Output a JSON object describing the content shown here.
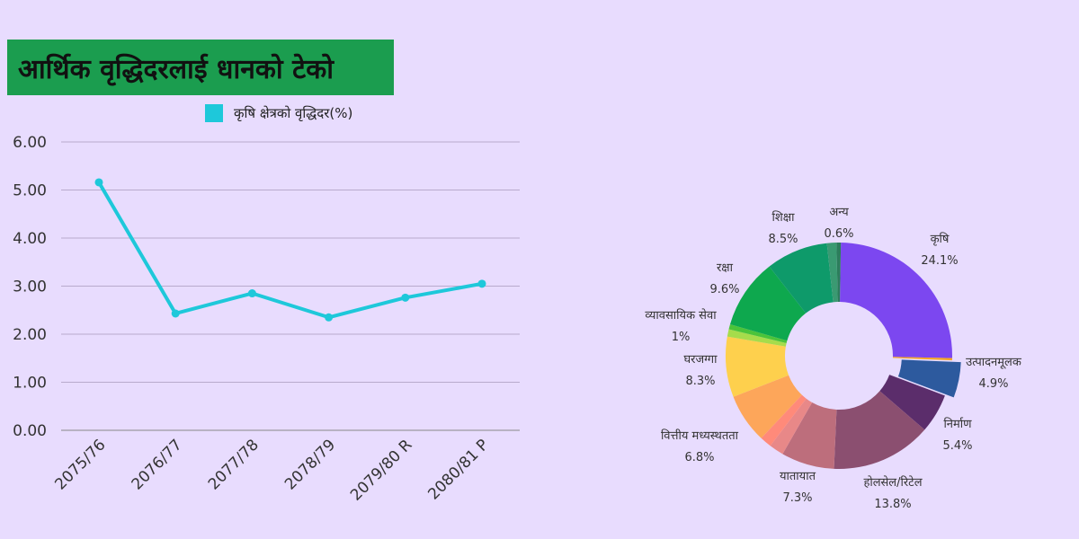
{
  "title": "आर्थिक वृद्धिदरलाई धानको टेको",
  "chart_data": [
    {
      "type": "line",
      "categories": [
        "2075/76",
        "2076/77",
        "2077/78",
        "2078/79",
        "2079/80 R",
        "2080/81 P"
      ],
      "series": [
        {
          "name": "कृषि क्षेत्रको वृद्धिदर(%)",
          "values": [
            5.16,
            2.43,
            2.85,
            2.35,
            2.76,
            3.05
          ],
          "color": "#1ec8da"
        }
      ],
      "yticks": [
        "0.00",
        "1.00",
        "2.00",
        "3.00",
        "4.00",
        "5.00",
        "6.00"
      ],
      "ylim": [
        0,
        6
      ],
      "grid": true,
      "legend": "top"
    },
    {
      "type": "pie",
      "slices": [
        {
          "label": "कृषि",
          "pct": "24.1%",
          "value": 24.1,
          "color": "#7c47f0"
        },
        {
          "label": "",
          "pct": "",
          "value": 0.3,
          "color": "#f5a623"
        },
        {
          "label": "उत्पादनमूलक",
          "pct": "4.9%",
          "value": 4.9,
          "color": "#2d5a9e"
        },
        {
          "label": "निर्माण",
          "pct": "5.4%",
          "value": 5.4,
          "color": "#5b2d6b"
        },
        {
          "label": "होलसेल/रिटेल",
          "pct": "13.8%",
          "value": 13.8,
          "color": "#8b4f70"
        },
        {
          "label": "यातायात",
          "pct": "7.3%",
          "value": 7.3,
          "color": "#bd6e7c"
        },
        {
          "label": "",
          "pct": "",
          "value": 2.0,
          "color": "#e88888"
        },
        {
          "label": "",
          "pct": "",
          "value": 1.6,
          "color": "#ff8a7a"
        },
        {
          "label": "वित्तीय मध्यस्थतता",
          "pct": "6.8%",
          "value": 6.8,
          "color": "#fda65a"
        },
        {
          "label": "घरजग्गा",
          "pct": "8.3%",
          "value": 8.3,
          "color": "#fed04d"
        },
        {
          "label": "व्यावसायिक सेवा",
          "pct": "1%",
          "value": 1.0,
          "color": "#a6dc4b"
        },
        {
          "label": "",
          "pct": "",
          "value": 0.7,
          "color": "#4bc43a"
        },
        {
          "label": "रक्षा",
          "pct": "9.6%",
          "value": 9.6,
          "color": "#0ea84e"
        },
        {
          "label": "शिक्षा",
          "pct": "8.5%",
          "value": 8.5,
          "color": "#0e9a6a"
        },
        {
          "label": "",
          "pct": "",
          "value": 1.3,
          "color": "#3a9a72"
        },
        {
          "label": "अन्य",
          "pct": "0.6%",
          "value": 0.6,
          "color": "#2c7d5c"
        }
      ]
    }
  ]
}
